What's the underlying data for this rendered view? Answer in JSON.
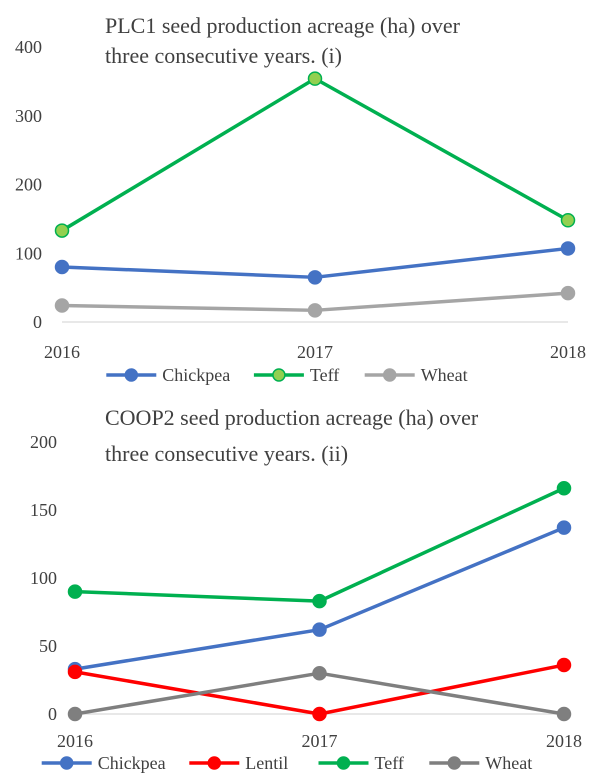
{
  "chart_data": [
    {
      "type": "line",
      "title_lines": [
        "PLC1 seed production acreage (ha) over",
        "three consecutive years. (i)"
      ],
      "categories": [
        "2016",
        "2017",
        "2018"
      ],
      "ylim": [
        0,
        400
      ],
      "yticks": [
        "0",
        "100",
        "200",
        "300",
        "400"
      ],
      "grid": false,
      "legend_position": "bottom",
      "series": [
        {
          "name": "Chickpea",
          "values": [
            80,
            65,
            107
          ],
          "color": "#4472C4",
          "marker_fill": "#4472C4"
        },
        {
          "name": "Teff",
          "values": [
            133,
            354,
            148
          ],
          "color": "#00B050",
          "marker_fill": "#92D050"
        },
        {
          "name": "Wheat",
          "values": [
            24,
            17,
            42
          ],
          "color": "#A5A5A5",
          "marker_fill": "#A5A5A5"
        }
      ]
    },
    {
      "type": "line",
      "title_lines": [
        "COOP2 seed production acreage (ha) over",
        "three consecutive years. (ii)"
      ],
      "categories": [
        "2016",
        "2017",
        "2018"
      ],
      "ylim": [
        0,
        200
      ],
      "yticks": [
        "0",
        "50",
        "100",
        "150",
        "200"
      ],
      "grid": false,
      "legend_position": "bottom",
      "series": [
        {
          "name": "Chickpea",
          "values": [
            33,
            62,
            137
          ],
          "color": "#4472C4",
          "marker_fill": "#4472C4"
        },
        {
          "name": "Lentil",
          "values": [
            31,
            0,
            36
          ],
          "color": "#FF0000",
          "marker_fill": "#FF0000"
        },
        {
          "name": "Teff",
          "values": [
            90,
            83,
            166
          ],
          "color": "#00B050",
          "marker_fill": "#00B050"
        },
        {
          "name": "Wheat",
          "values": [
            0,
            30,
            0
          ],
          "color": "#7F7F7F",
          "marker_fill": "#7F7F7F"
        }
      ]
    }
  ]
}
